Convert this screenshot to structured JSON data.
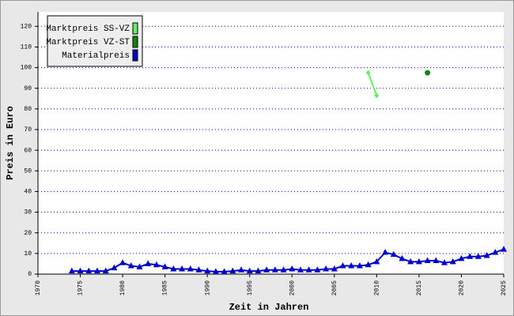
{
  "chart_data": {
    "type": "line",
    "xlabel": "Zeit in Jahren",
    "ylabel": "Preis in Euro",
    "xlim": [
      1970,
      2025
    ],
    "xticks": [
      1970,
      1975,
      1980,
      1985,
      1990,
      1995,
      2000,
      2005,
      2010,
      2015,
      2020,
      2025
    ],
    "ylim": [
      0,
      127
    ],
    "yticks": [
      0,
      10,
      20,
      30,
      40,
      50,
      60,
      70,
      80,
      90,
      100,
      110,
      120
    ],
    "grid": true,
    "legend": "top-left",
    "series": [
      {
        "name": "Marktpreis SS-VZ",
        "color": "#66ee66",
        "marker": "diamond",
        "line": true,
        "x": [
          2009,
          2010
        ],
        "values": [
          97.5,
          86.5
        ]
      },
      {
        "name": "Marktpreis VZ-ST",
        "color": "#118811",
        "marker": "circle",
        "line": false,
        "x": [
          2016
        ],
        "values": [
          97.5
        ]
      },
      {
        "name": "Materialpreis",
        "color": "#0000cc",
        "marker": "triangle",
        "line": true,
        "x": [
          1974,
          1975,
          1976,
          1977,
          1978,
          1979,
          1980,
          1981,
          1982,
          1983,
          1984,
          1985,
          1986,
          1987,
          1988,
          1989,
          1990,
          1991,
          1992,
          1993,
          1994,
          1995,
          1996,
          1997,
          1998,
          1999,
          2000,
          2001,
          2002,
          2003,
          2004,
          2005,
          2006,
          2007,
          2008,
          2009,
          2010,
          2011,
          2012,
          2013,
          2014,
          2015,
          2016,
          2017,
          2018,
          2019,
          2020,
          2021,
          2022,
          2023,
          2024,
          2025
        ],
        "values": [
          1.5,
          1.5,
          1.5,
          1.5,
          1.5,
          3,
          5.5,
          4,
          3.5,
          5,
          4.5,
          3.5,
          2.5,
          2.5,
          2.5,
          2,
          1.5,
          1.2,
          1.2,
          1.5,
          2,
          1.5,
          1.5,
          2,
          2,
          2,
          2.5,
          2,
          2,
          2,
          2.5,
          2.5,
          4,
          4,
          4,
          4.5,
          6,
          10.5,
          9.5,
          7.5,
          6,
          6,
          6.5,
          6.5,
          5.5,
          6,
          7.5,
          8.5,
          8.5,
          9,
          10.5,
          12
        ]
      }
    ]
  }
}
